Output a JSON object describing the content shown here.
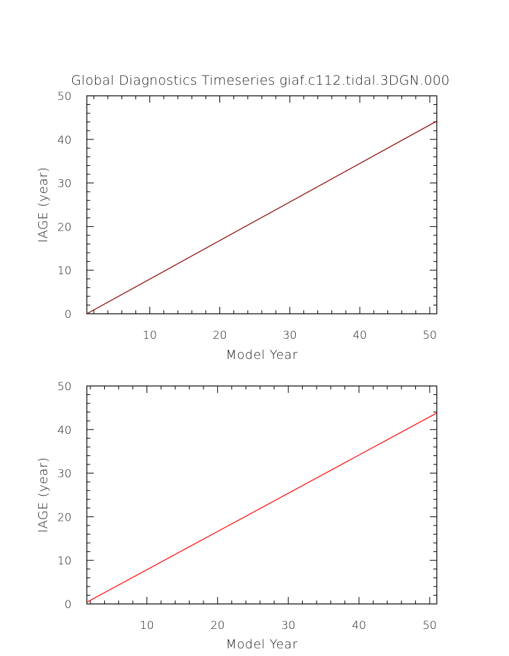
{
  "chart_data": [
    {
      "type": "line",
      "title": "Global Diagnostics Timeseries giaf.c112.tidal.3DGN.000",
      "xlabel": "Model Year",
      "ylabel": "IAGE (year)",
      "xlim": [
        1,
        51
      ],
      "ylim": [
        0,
        50
      ],
      "x_ticks": [
        "10",
        "20",
        "30",
        "40",
        "50"
      ],
      "y_ticks": [
        "0",
        "10",
        "20",
        "30",
        "40",
        "50"
      ],
      "series": [
        {
          "color": "#8b0000",
          "x": [
            1,
            51
          ],
          "y": [
            0.0,
            44.2
          ]
        }
      ]
    },
    {
      "type": "line",
      "title": "",
      "xlabel": "Model Year",
      "ylabel": "IAGE (year)",
      "xlim": [
        1.5,
        51
      ],
      "ylim": [
        0,
        50
      ],
      "x_ticks": [
        "10",
        "20",
        "30",
        "40",
        "50"
      ],
      "y_ticks": [
        "0",
        "10",
        "20",
        "30",
        "40",
        "50"
      ],
      "series": [
        {
          "color": "#ff0000",
          "x": [
            1.5,
            51
          ],
          "y": [
            0.4,
            43.8
          ]
        }
      ]
    }
  ]
}
